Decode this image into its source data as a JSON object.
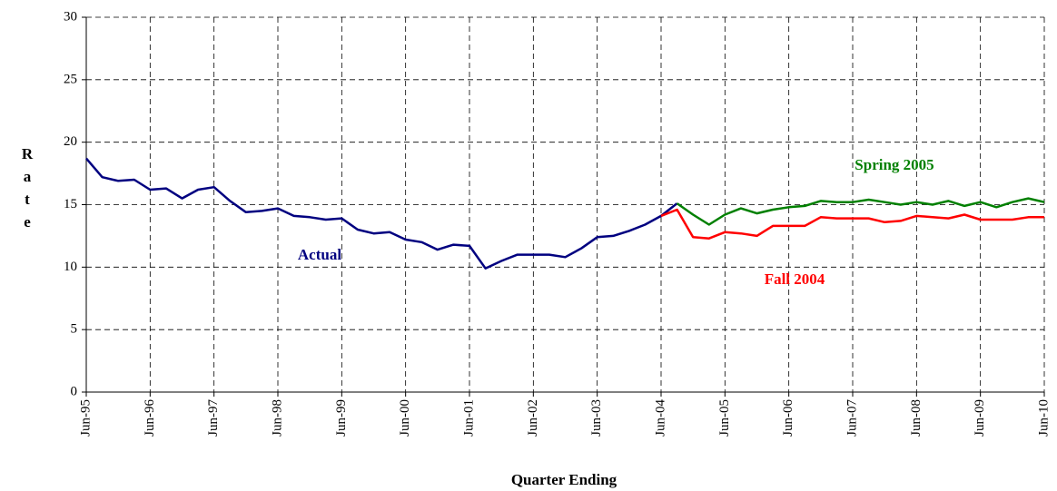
{
  "chart_data": {
    "type": "line",
    "x_label": "Quarter Ending",
    "y_label": "Rate",
    "categories": [
      "Jun-95",
      null,
      null,
      null,
      "Jun-96",
      null,
      null,
      null,
      "Jun-97",
      null,
      null,
      null,
      "Jun-98",
      null,
      null,
      null,
      "Jun-99",
      null,
      null,
      null,
      "Jun-00",
      null,
      null,
      null,
      "Jun-01",
      null,
      null,
      null,
      "Jun-02",
      null,
      null,
      null,
      "Jun-03",
      null,
      null,
      null,
      "Jun-04",
      null,
      null,
      null,
      "Jun-05",
      null,
      null,
      null,
      "Jun-06",
      null,
      null,
      null,
      "Jun-07",
      null,
      null,
      null,
      "Jun-08",
      null,
      null,
      null,
      "Jun-09",
      null,
      null,
      null,
      "Jun-10"
    ],
    "series": [
      {
        "name": "Actual",
        "color": "#000080",
        "values": [
          18.7,
          17.2,
          16.9,
          17.0,
          16.2,
          16.3,
          15.5,
          16.2,
          16.4,
          15.3,
          14.4,
          14.5,
          14.7,
          14.1,
          14.0,
          13.8,
          13.9,
          13.0,
          12.7,
          12.8,
          12.2,
          12.0,
          11.4,
          11.8,
          11.7,
          9.9,
          10.5,
          11.0,
          11.0,
          11.0,
          10.8,
          11.5,
          12.4,
          12.5,
          12.9,
          13.4,
          14.1,
          15.1,
          null,
          null,
          null,
          null,
          null,
          null,
          null,
          null,
          null,
          null,
          null,
          null,
          null,
          null,
          null,
          null,
          null,
          null,
          null,
          null,
          null,
          null,
          null
        ]
      },
      {
        "name": "Spring 2005",
        "color": "#008000",
        "values": [
          null,
          null,
          null,
          null,
          null,
          null,
          null,
          null,
          null,
          null,
          null,
          null,
          null,
          null,
          null,
          null,
          null,
          null,
          null,
          null,
          null,
          null,
          null,
          null,
          null,
          null,
          null,
          null,
          null,
          null,
          null,
          null,
          null,
          null,
          null,
          null,
          null,
          15.1,
          14.2,
          13.4,
          14.2,
          14.7,
          14.3,
          14.6,
          14.8,
          14.9,
          15.3,
          15.2,
          15.2,
          15.4,
          15.2,
          15.0,
          15.2,
          15.0,
          15.3,
          14.9,
          15.2,
          14.8,
          15.2,
          15.5,
          15.2
        ]
      },
      {
        "name": "Fall 2004",
        "color": "#ff0000",
        "values": [
          null,
          null,
          null,
          null,
          null,
          null,
          null,
          null,
          null,
          null,
          null,
          null,
          null,
          null,
          null,
          null,
          null,
          null,
          null,
          null,
          null,
          null,
          null,
          null,
          null,
          null,
          null,
          null,
          null,
          null,
          null,
          null,
          null,
          null,
          null,
          null,
          14.1,
          14.6,
          12.4,
          12.3,
          12.8,
          12.7,
          12.5,
          13.3,
          13.3,
          13.3,
          14.0,
          13.9,
          13.9,
          13.9,
          13.6,
          13.7,
          14.1,
          14.0,
          13.9,
          14.2,
          13.8,
          13.8,
          13.8,
          14.0,
          14.0
        ]
      }
    ],
    "ylim": [
      0,
      30
    ],
    "yticks": [
      0,
      5,
      10,
      15,
      20,
      25,
      30
    ],
    "grid": true
  }
}
